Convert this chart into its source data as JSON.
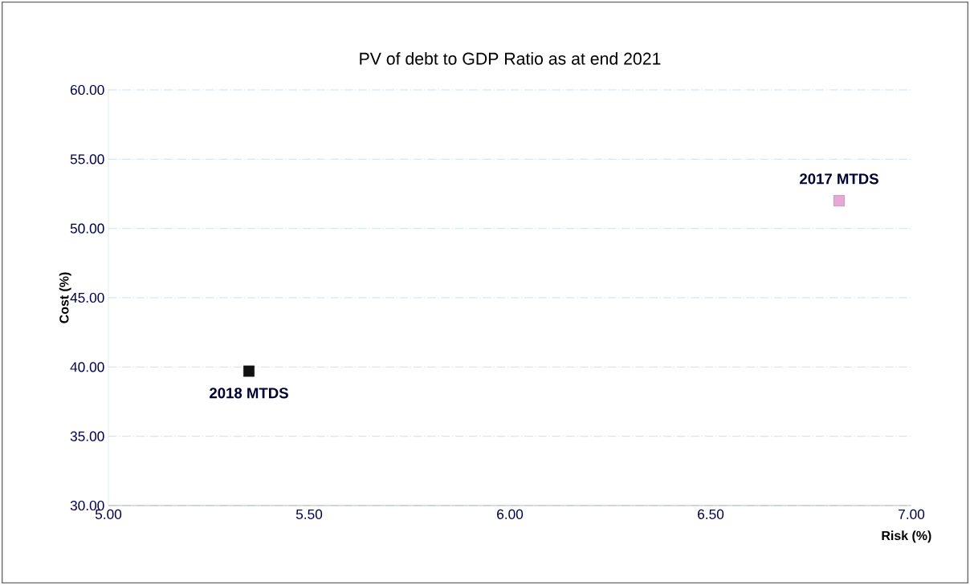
{
  "chart_data": {
    "type": "scatter",
    "title": "PV of debt to GDP Ratio as at end 2021",
    "xlabel": "Risk (%)",
    "ylabel": "Cost (%)",
    "series": [
      {
        "name": "2018 MTDS",
        "color": "#111111",
        "x": [
          5.35
        ],
        "values": [
          39.7
        ]
      },
      {
        "name": "2017 MTDS",
        "color": "#e6a8d6",
        "x": [
          6.82
        ],
        "values": [
          52.0
        ]
      }
    ],
    "xlim": [
      5,
      7
    ],
    "ylim": [
      30,
      60
    ],
    "xticks": [
      {
        "value": 5,
        "label": "5.00"
      },
      {
        "value": 5.5,
        "label": "5.50"
      },
      {
        "value": 6,
        "label": "6.00"
      },
      {
        "value": 6.5,
        "label": "6.50"
      },
      {
        "value": 7,
        "label": "7.00"
      }
    ],
    "yticks": [
      {
        "value": 30,
        "label": "30.00"
      },
      {
        "value": 35,
        "label": "35.00"
      },
      {
        "value": 40,
        "label": "40.00"
      },
      {
        "value": 45,
        "label": "45.00"
      },
      {
        "value": 50,
        "label": "50.00"
      },
      {
        "value": 55,
        "label": "55.00"
      },
      {
        "value": 60,
        "label": "60.00"
      }
    ],
    "grid": "y",
    "legend": false,
    "marker": "square"
  }
}
